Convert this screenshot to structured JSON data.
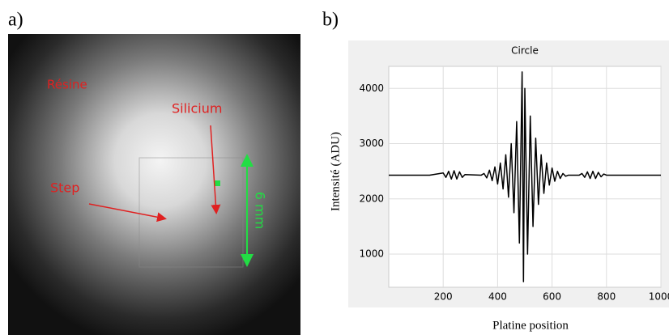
{
  "panels": {
    "a": "a)",
    "b": "b)"
  },
  "photo": {
    "labels": [
      "Résine",
      "Silicium",
      "Step",
      "6 mm"
    ]
  },
  "chart_data": {
    "type": "line",
    "title": "Circle",
    "ylabel": "Intensité (ADU)",
    "xlabel": "Platine position",
    "x": [
      0,
      100,
      150,
      200,
      210,
      220,
      230,
      240,
      250,
      260,
      270,
      280,
      340,
      350,
      360,
      370,
      380,
      390,
      400,
      410,
      420,
      430,
      440,
      450,
      460,
      470,
      480,
      490,
      495,
      500,
      510,
      520,
      530,
      540,
      550,
      560,
      570,
      580,
      590,
      600,
      610,
      620,
      630,
      640,
      650,
      660,
      700,
      710,
      720,
      730,
      740,
      750,
      760,
      770,
      780,
      790,
      800,
      1000
    ],
    "values": [
      2430,
      2430,
      2430,
      2470,
      2390,
      2500,
      2360,
      2510,
      2360,
      2490,
      2390,
      2440,
      2430,
      2460,
      2380,
      2520,
      2330,
      2580,
      2270,
      2650,
      2180,
      2800,
      2030,
      3000,
      1750,
      3400,
      1200,
      4300,
      500,
      4000,
      1000,
      3500,
      1500,
      3100,
      1900,
      2800,
      2100,
      2650,
      2250,
      2560,
      2320,
      2500,
      2370,
      2460,
      2410,
      2430,
      2430,
      2460,
      2390,
      2490,
      2370,
      2500,
      2370,
      2480,
      2400,
      2450,
      2430,
      2430
    ],
    "color": "#000000",
    "xlim": [
      0,
      1000
    ],
    "xticks": [
      200,
      400,
      600,
      800,
      1000
    ],
    "ylim": [
      400,
      4400
    ],
    "yticks": [
      1000,
      2000,
      3000,
      4000
    ],
    "grid": true
  }
}
